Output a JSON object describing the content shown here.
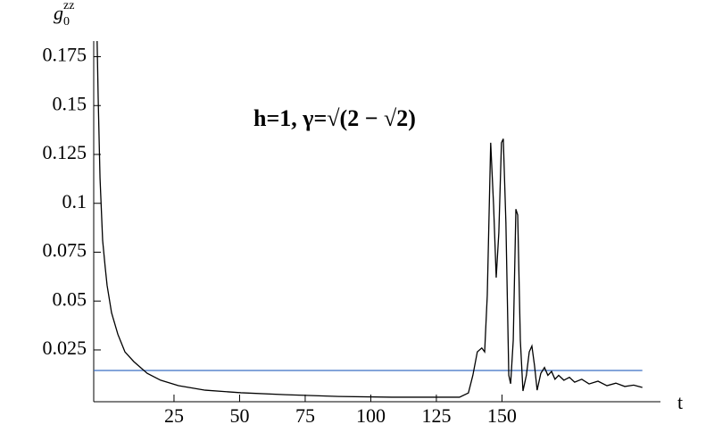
{
  "chart_data": {
    "type": "line",
    "annotation": "h=1,  γ=√(2 − √2)",
    "x_label": "t",
    "y_label": {
      "symbol": "g",
      "subscript": "0",
      "superscript": "zz"
    },
    "xlim": [
      -5.6,
      210.4
    ],
    "ylim": [
      -0.0015,
      0.183
    ],
    "xticks": [
      25,
      50,
      75,
      100,
      125,
      150
    ],
    "yticks": [
      0.025,
      0.05,
      0.075,
      0.1,
      0.125,
      0.15,
      0.175
    ],
    "grid": false,
    "hlines": [
      {
        "value": 0.0145,
        "color": "#3b6fc4"
      }
    ],
    "series": [
      {
        "color": "#000000",
        "x": [
          -4.3,
          -3.9,
          -3.2,
          -2.2,
          -1.2,
          -0.5,
          1.2,
          3.6,
          6.3,
          9.7,
          14.8,
          19.9,
          26.7,
          36.9,
          50.5,
          67.5,
          87.9,
          108,
          133.8,
          137.2,
          138.9,
          140.6,
          142.3,
          143.4,
          144.4,
          145.7,
          146.8,
          147.8,
          148.8,
          149.8,
          150.5,
          151.5,
          152.6,
          153.3,
          154.3,
          155.3,
          156.0,
          157.0,
          158.0,
          159.3,
          160.4,
          161.4,
          162.4,
          163.4,
          164.8,
          166.2,
          167.5,
          168.9,
          170.2,
          171.6,
          173.6,
          175.7,
          177.7,
          180.4,
          183.2,
          186.6,
          190,
          193.4,
          196.8,
          200.2,
          203.5
        ],
        "values": [
          0.183,
          0.154,
          0.113,
          0.081,
          0.067,
          0.058,
          0.044,
          0.033,
          0.024,
          0.019,
          0.013,
          0.0095,
          0.0067,
          0.0044,
          0.0031,
          0.0021,
          0.0012,
          0.0008,
          0.0008,
          0.003,
          0.012,
          0.024,
          0.026,
          0.024,
          0.053,
          0.131,
          0.099,
          0.062,
          0.085,
          0.131,
          0.133,
          0.09,
          0.012,
          0.0077,
          0.03,
          0.097,
          0.094,
          0.03,
          0.004,
          0.012,
          0.024,
          0.027,
          0.017,
          0.0044,
          0.013,
          0.016,
          0.012,
          0.014,
          0.01,
          0.012,
          0.0095,
          0.011,
          0.0085,
          0.01,
          0.0076,
          0.009,
          0.0067,
          0.008,
          0.0063,
          0.007,
          0.0058
        ]
      }
    ]
  }
}
